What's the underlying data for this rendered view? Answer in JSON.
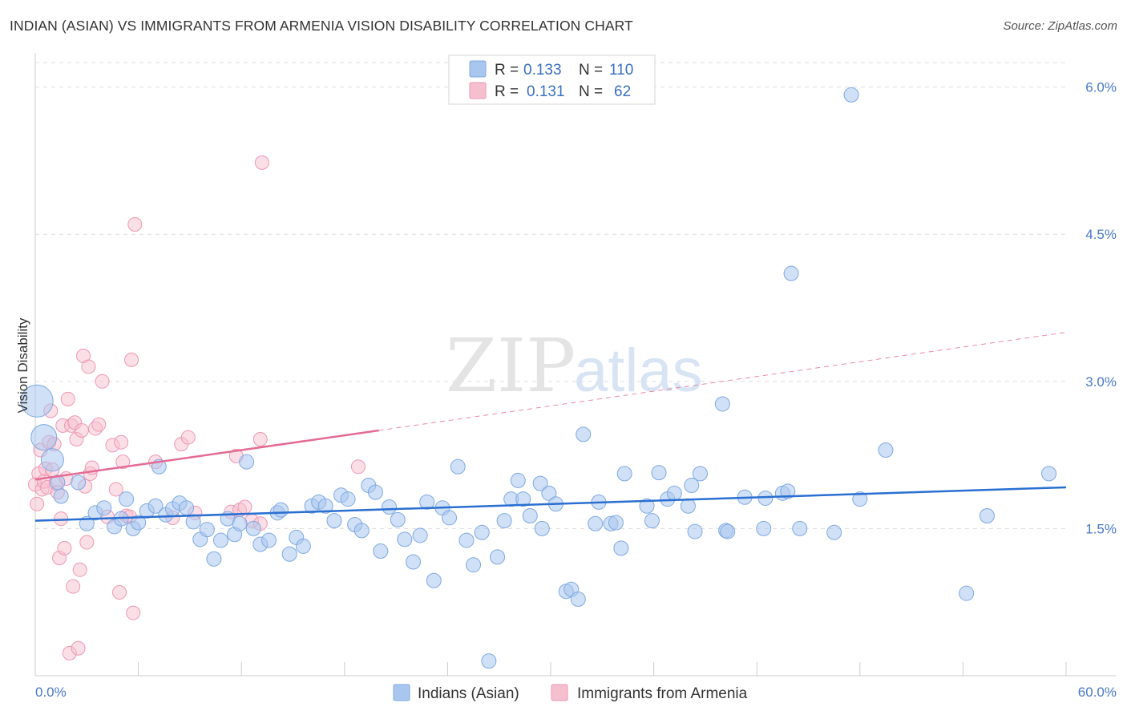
{
  "title": "INDIAN (ASIAN) VS IMMIGRANTS FROM ARMENIA VISION DISABILITY CORRELATION CHART",
  "source": "Source: ZipAtlas.com",
  "watermark": {
    "zip": "ZIP",
    "atlas": "atlas"
  },
  "colors": {
    "blue_fill": "#a9c7ee",
    "blue_stroke": "#7fa9e0",
    "blue_line": "#2a6fd1",
    "pink_fill": "#f6bfd0",
    "pink_stroke": "#ee97b3",
    "pink_line": "#e46b93",
    "tick_text": "#4a78c8",
    "grid": "#dddddd"
  },
  "legend": {
    "rows": [
      {
        "r_label": "R =",
        "r_value": "0.133",
        "n_label": "N =",
        "n_value": "110",
        "color": "blue"
      },
      {
        "r_label": "R =",
        "r_value": "0.131",
        "n_label": "N =",
        "n_value": "62",
        "color": "pink"
      }
    ]
  },
  "chart_data": {
    "type": "scatter",
    "title": "INDIAN (ASIAN) VS IMMIGRANTS FROM ARMENIA VISION DISABILITY CORRELATION CHART",
    "xlabel": "",
    "ylabel": "Vision Disability",
    "xlim": [
      0,
      60
    ],
    "ylim": [
      0,
      6.25
    ],
    "x_tick_labels": [
      "0.0%",
      "60.0%"
    ],
    "y_ticks": [
      1.5,
      3.0,
      4.5,
      6.0
    ],
    "y_tick_labels": [
      "1.5%",
      "3.0%",
      "4.5%",
      "6.0%"
    ],
    "grid": "horizontal dashed",
    "legend_position": "top-center",
    "series": [
      {
        "name": "Indians (Asian)",
        "color": "#a9c7ee",
        "points": [
          [
            0.1,
            2.8
          ],
          [
            0.5,
            2.43
          ],
          [
            1.0,
            2.2
          ],
          [
            1.5,
            1.83
          ],
          [
            1.3,
            1.97
          ],
          [
            2.5,
            1.97
          ],
          [
            3.0,
            1.55
          ],
          [
            3.5,
            1.66
          ],
          [
            4.0,
            1.71
          ],
          [
            4.6,
            1.52
          ],
          [
            5.0,
            1.6
          ],
          [
            5.3,
            1.8
          ],
          [
            5.7,
            1.5
          ],
          [
            6.0,
            1.56
          ],
          [
            6.5,
            1.68
          ],
          [
            7.0,
            1.73
          ],
          [
            7.2,
            2.13
          ],
          [
            7.6,
            1.64
          ],
          [
            8.0,
            1.7
          ],
          [
            8.4,
            1.76
          ],
          [
            8.8,
            1.71
          ],
          [
            9.2,
            1.57
          ],
          [
            9.6,
            1.39
          ],
          [
            10.0,
            1.49
          ],
          [
            10.4,
            1.19
          ],
          [
            10.8,
            1.38
          ],
          [
            11.2,
            1.6
          ],
          [
            11.6,
            1.44
          ],
          [
            11.9,
            1.55
          ],
          [
            12.3,
            2.18
          ],
          [
            12.7,
            1.5
          ],
          [
            13.1,
            1.34
          ],
          [
            13.6,
            1.38
          ],
          [
            14.1,
            1.66
          ],
          [
            14.3,
            1.69
          ],
          [
            14.8,
            1.24
          ],
          [
            15.2,
            1.41
          ],
          [
            15.6,
            1.32
          ],
          [
            16.1,
            1.73
          ],
          [
            16.5,
            1.77
          ],
          [
            16.9,
            1.73
          ],
          [
            17.4,
            1.58
          ],
          [
            17.8,
            1.84
          ],
          [
            18.2,
            1.8
          ],
          [
            18.6,
            1.54
          ],
          [
            19.0,
            1.48
          ],
          [
            19.4,
            1.94
          ],
          [
            19.8,
            1.87
          ],
          [
            20.1,
            1.27
          ],
          [
            20.6,
            1.72
          ],
          [
            21.1,
            1.59
          ],
          [
            21.5,
            1.39
          ],
          [
            22.0,
            1.16
          ],
          [
            22.4,
            1.43
          ],
          [
            22.8,
            1.77
          ],
          [
            23.2,
            0.97
          ],
          [
            23.7,
            1.71
          ],
          [
            24.1,
            1.61
          ],
          [
            24.6,
            2.13
          ],
          [
            25.1,
            1.38
          ],
          [
            25.5,
            1.13
          ],
          [
            26.0,
            1.46
          ],
          [
            26.4,
            0.15
          ],
          [
            26.9,
            1.21
          ],
          [
            27.3,
            1.58
          ],
          [
            27.7,
            1.8
          ],
          [
            28.1,
            1.99
          ],
          [
            28.4,
            1.8
          ],
          [
            28.8,
            1.63
          ],
          [
            29.5,
            1.5
          ],
          [
            29.4,
            1.96
          ],
          [
            29.9,
            1.86
          ],
          [
            30.3,
            1.75
          ],
          [
            30.9,
            0.86
          ],
          [
            31.2,
            0.88
          ],
          [
            31.6,
            0.78
          ],
          [
            31.9,
            2.46
          ],
          [
            32.6,
            1.55
          ],
          [
            32.8,
            1.77
          ],
          [
            33.5,
            1.55
          ],
          [
            33.8,
            1.56
          ],
          [
            34.1,
            1.3
          ],
          [
            34.3,
            2.06
          ],
          [
            35.6,
            1.73
          ],
          [
            35.9,
            1.58
          ],
          [
            36.3,
            2.07
          ],
          [
            36.8,
            1.8
          ],
          [
            37.2,
            1.86
          ],
          [
            38.0,
            1.73
          ],
          [
            38.4,
            1.47
          ],
          [
            38.7,
            2.06
          ],
          [
            38.2,
            1.94
          ],
          [
            40.0,
            2.77
          ],
          [
            40.2,
            1.48
          ],
          [
            40.3,
            1.47
          ],
          [
            41.3,
            1.82
          ],
          [
            42.4,
            1.5
          ],
          [
            42.5,
            1.81
          ],
          [
            43.5,
            1.86
          ],
          [
            43.8,
            1.88
          ],
          [
            44.5,
            1.5
          ],
          [
            46.5,
            1.46
          ],
          [
            47.5,
            5.92
          ],
          [
            48.0,
            1.8
          ],
          [
            49.5,
            2.3
          ],
          [
            54.2,
            0.84
          ],
          [
            55.4,
            1.63
          ],
          [
            59.0,
            2.06
          ],
          [
            44.0,
            4.1
          ]
        ]
      },
      {
        "name": "Immigrants from Armenia",
        "color": "#f6bfd0",
        "points": [
          [
            0.0,
            1.95
          ],
          [
            0.1,
            1.75
          ],
          [
            0.2,
            2.06
          ],
          [
            0.3,
            2.3
          ],
          [
            0.4,
            1.9
          ],
          [
            0.5,
            1.98
          ],
          [
            0.6,
            2.11
          ],
          [
            0.7,
            1.92
          ],
          [
            0.8,
            2.38
          ],
          [
            0.9,
            2.7
          ],
          [
            1.0,
            2.1
          ],
          [
            1.1,
            2.36
          ],
          [
            1.2,
            1.96
          ],
          [
            1.3,
            1.87
          ],
          [
            1.4,
            1.2
          ],
          [
            1.5,
            1.6
          ],
          [
            1.6,
            2.55
          ],
          [
            1.7,
            1.3
          ],
          [
            1.8,
            2.01
          ],
          [
            1.9,
            2.82
          ],
          [
            2.0,
            0.23
          ],
          [
            2.1,
            2.55
          ],
          [
            2.2,
            0.91
          ],
          [
            2.3,
            2.58
          ],
          [
            2.4,
            2.41
          ],
          [
            2.5,
            0.28
          ],
          [
            2.6,
            1.08
          ],
          [
            2.7,
            2.5
          ],
          [
            2.8,
            3.26
          ],
          [
            2.9,
            1.93
          ],
          [
            3.0,
            1.36
          ],
          [
            3.1,
            3.15
          ],
          [
            3.2,
            2.06
          ],
          [
            3.3,
            2.12
          ],
          [
            3.5,
            2.52
          ],
          [
            3.7,
            2.56
          ],
          [
            3.9,
            3.0
          ],
          [
            4.2,
            1.62
          ],
          [
            4.5,
            2.35
          ],
          [
            4.7,
            1.9
          ],
          [
            4.9,
            0.85
          ],
          [
            5.0,
            2.38
          ],
          [
            5.1,
            2.18
          ],
          [
            5.3,
            1.63
          ],
          [
            5.5,
            1.62
          ],
          [
            5.6,
            3.22
          ],
          [
            5.7,
            0.64
          ],
          [
            5.8,
            4.6
          ],
          [
            7.0,
            2.18
          ],
          [
            8.0,
            1.61
          ],
          [
            8.5,
            2.36
          ],
          [
            8.9,
            2.43
          ],
          [
            9.3,
            1.66
          ],
          [
            11.4,
            1.67
          ],
          [
            11.7,
            2.24
          ],
          [
            11.9,
            1.69
          ],
          [
            12.2,
            1.72
          ],
          [
            12.6,
            1.58
          ],
          [
            13.1,
            2.41
          ],
          [
            13.1,
            1.55
          ],
          [
            13.2,
            5.23
          ],
          [
            18.8,
            2.13
          ]
        ]
      }
    ],
    "trend_lines": [
      {
        "series": "Indians (Asian)",
        "x": [
          0,
          60
        ],
        "y": [
          1.58,
          1.92
        ]
      },
      {
        "series": "Immigrants from Armenia",
        "x": [
          0,
          20
        ],
        "y": [
          2.0,
          2.5
        ],
        "dashed_extension_to": [
          60,
          3.5
        ]
      }
    ]
  }
}
